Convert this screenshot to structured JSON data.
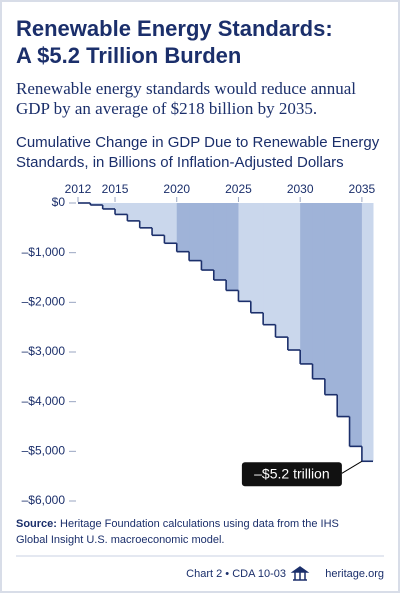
{
  "title": [
    "Renewable Energy Standards:",
    "A $5.2 Trillion Burden"
  ],
  "subtitle": [
    "Renewable energy standards would reduce annual",
    "GDP by an average of $218 billion by 2035."
  ],
  "chart_data": {
    "type": "step",
    "title": [
      "Cumulative Change in GDP Due to Renewable Energy",
      "Standards, in Billions of Inflation-Adjusted Dollars"
    ],
    "x": [
      2012,
      2013,
      2014,
      2015,
      2016,
      2017,
      2018,
      2019,
      2020,
      2021,
      2022,
      2023,
      2024,
      2025,
      2026,
      2027,
      2028,
      2029,
      2030,
      2031,
      2032,
      2033,
      2034,
      2035
    ],
    "values": [
      0,
      -40,
      -120,
      -230,
      -360,
      -500,
      -650,
      -810,
      -980,
      -1160,
      -1350,
      -1550,
      -1760,
      -1980,
      -2210,
      -2450,
      -2700,
      -2960,
      -3240,
      -3540,
      -3860,
      -4300,
      -4900,
      -5200
    ],
    "color": "#1b2f6b",
    "band_colors": [
      "#cad7ec",
      "#9fb3d8"
    ],
    "xlim": [
      2012,
      2035.9
    ],
    "xticks": [
      2012,
      2015,
      2020,
      2025,
      2030,
      2035
    ],
    "ylim": [
      -6000,
      0
    ],
    "yticks": [
      {
        "value": 0,
        "label": "$0"
      },
      {
        "value": -1000,
        "label": "–$1,000"
      },
      {
        "value": -2000,
        "label": "–$2,000"
      },
      {
        "value": -3000,
        "label": "–$3,000"
      },
      {
        "value": -4000,
        "label": "–$4,000"
      },
      {
        "value": -5000,
        "label": "–$5,000"
      },
      {
        "value": -6000,
        "label": "–$6,000"
      }
    ],
    "annotation": {
      "label": "–$5.2 trillion",
      "x": 2035,
      "y": -5200
    }
  },
  "source": [
    "Source:",
    "Heritage Foundation calculations using data from the IHS",
    "Global Insight U.S. macroeconomic model."
  ],
  "footer": [
    "Chart 2 • CDA 10-03",
    "heritage.org"
  ]
}
